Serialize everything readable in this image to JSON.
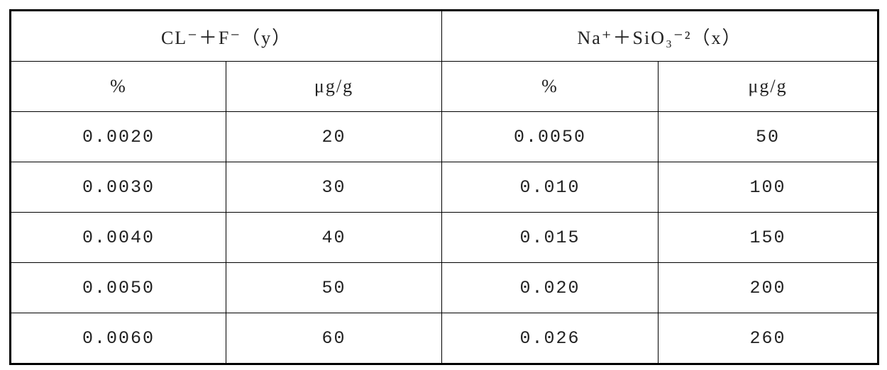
{
  "table": {
    "header": [
      [
        "CL⁻＋F⁻（y）",
        "Na⁺＋SiO₃⁻²（x）"
      ],
      [
        "%",
        "μg/g",
        "%",
        "μg/g"
      ]
    ],
    "rows": [
      [
        "0.0020",
        "20",
        "0.0050",
        "50"
      ],
      [
        "0.0030",
        "30",
        "0.010",
        "100"
      ],
      [
        "0.0040",
        "40",
        "0.015",
        "150"
      ],
      [
        "0.0050",
        "50",
        "0.020",
        "200"
      ],
      [
        "0.0060",
        "60",
        "0.026",
        "260"
      ]
    ]
  }
}
